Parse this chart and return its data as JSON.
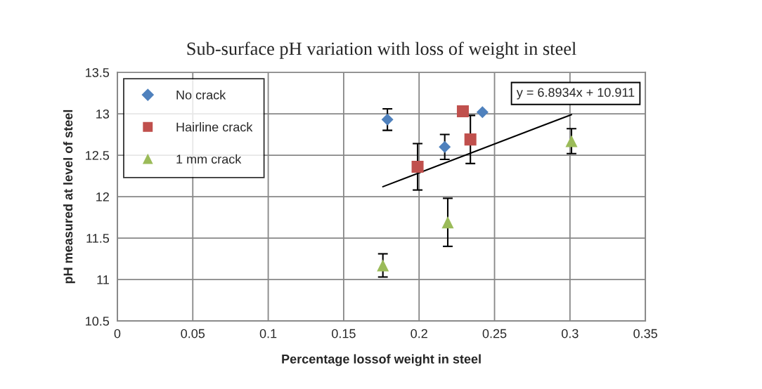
{
  "chart_data": {
    "type": "scatter",
    "title": "Sub-surface pH variation with loss of weight in steel",
    "xlabel": "Percentage lossof weight in steel",
    "ylabel": "pH measured at level of steel",
    "xlim": [
      0,
      0.35
    ],
    "xticks": [
      0,
      0.05,
      0.1,
      0.15,
      0.2,
      0.25,
      0.3,
      0.35
    ],
    "ylim": [
      10.5,
      13.5
    ],
    "yticks": [
      10.5,
      11,
      11.5,
      12,
      12.5,
      13,
      13.5
    ],
    "grid": true,
    "legend": "top left",
    "annotations": [
      "y = 6.8934x + 10.911"
    ],
    "series": [
      {
        "name": "No crack",
        "color": "#4f81bd",
        "marker": "diamond",
        "x": [
          0.179,
          0.217,
          0.242
        ],
        "values": [
          12.93,
          12.6,
          13.02
        ],
        "errors": [
          0.13,
          0.15,
          null
        ]
      },
      {
        "name": "Hairline crack",
        "color": "#c0504d",
        "marker": "square",
        "x": [
          0.199,
          0.229,
          0.234
        ],
        "values": [
          12.36,
          13.03,
          12.69
        ],
        "errors": [
          0.28,
          null,
          0.29
        ]
      },
      {
        "name": "1 mm crack",
        "color": "#9bbb59",
        "marker": "triangle",
        "x": [
          0.176,
          0.219,
          0.301
        ],
        "values": [
          11.17,
          11.69,
          12.67
        ],
        "errors": [
          0.14,
          0.29,
          0.15
        ]
      },
      {
        "type": "line",
        "color": "#000000",
        "x": [
          0.176,
          0.301
        ],
        "values": [
          12.12,
          12.99
        ]
      }
    ]
  }
}
